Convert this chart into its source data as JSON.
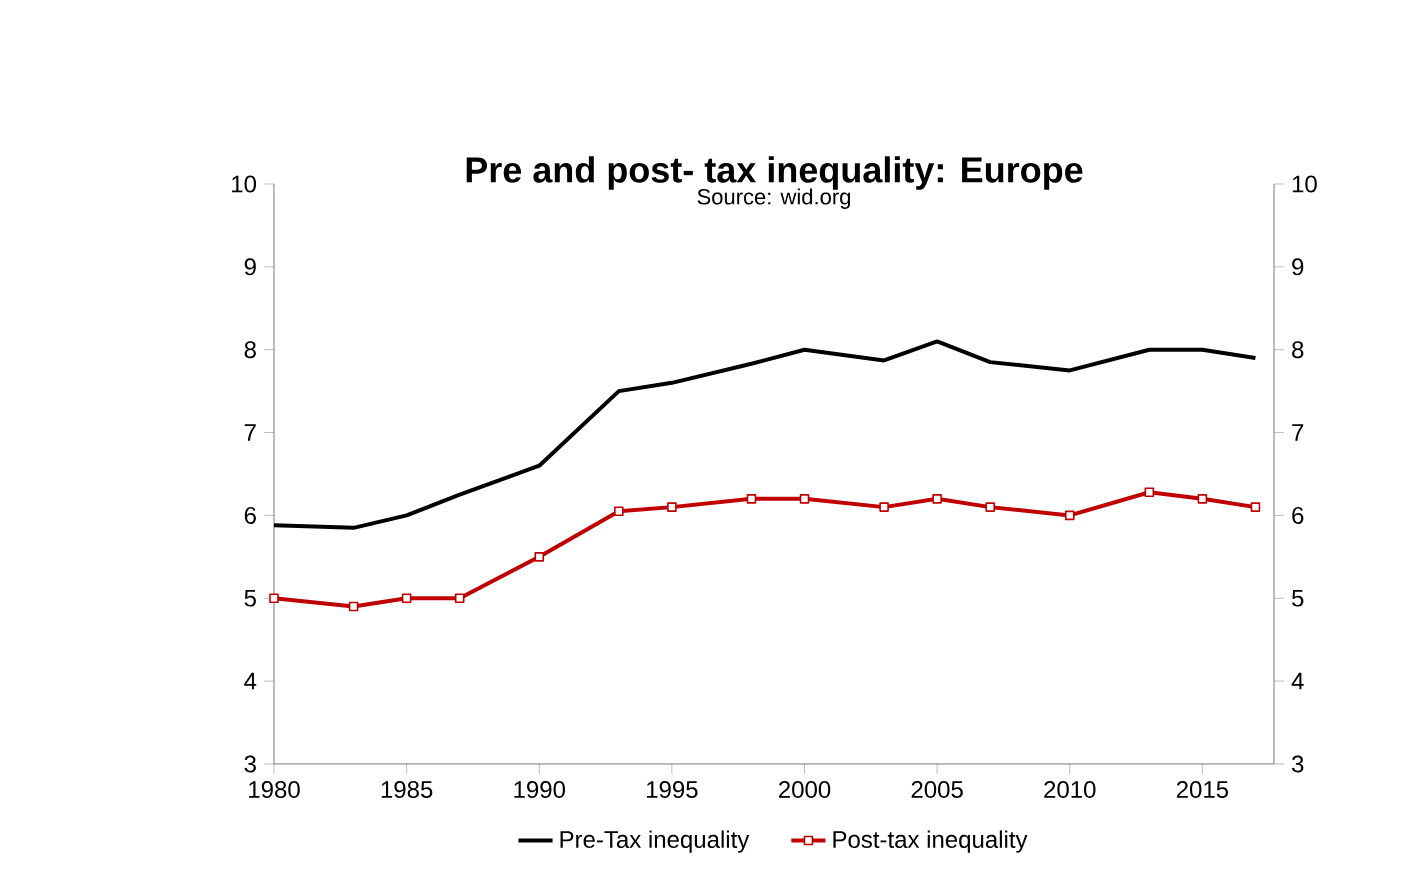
{
  "chart_data": {
    "type": "line",
    "title": "Pre and post- tax inequality: Europe",
    "subtitle": "Source: wid.org",
    "x": [
      1980,
      1983,
      1985,
      1987,
      1990,
      1993,
      1995,
      1998,
      2000,
      2003,
      2005,
      2007,
      2010,
      2013,
      2015,
      2017
    ],
    "series": [
      {
        "name": "Pre-Tax inequality",
        "color": "#000000",
        "marker": "none",
        "values": [
          5.88,
          5.85,
          6.0,
          6.25,
          6.6,
          7.5,
          7.6,
          7.83,
          8.0,
          7.87,
          8.1,
          7.85,
          7.75,
          8.0,
          8.0,
          7.9
        ]
      },
      {
        "name": "Post-tax inequality",
        "color": "#c00000",
        "marker": "square",
        "values": [
          5.0,
          4.9,
          5.0,
          5.0,
          5.5,
          6.05,
          6.1,
          6.2,
          6.2,
          6.1,
          6.2,
          6.1,
          6.0,
          6.28,
          6.2,
          6.1
        ]
      }
    ],
    "xlim": [
      1980,
      2017.7
    ],
    "xticks": [
      1980,
      1985,
      1990,
      1995,
      2000,
      2005,
      2010,
      2015
    ],
    "ylim": [
      3,
      10
    ],
    "yticks": [
      3,
      4,
      5,
      6,
      7,
      8,
      9,
      10
    ],
    "y2lim": [
      3,
      10
    ],
    "y2ticks": [
      3,
      4,
      5,
      6,
      7,
      8,
      9,
      10
    ],
    "grid": false,
    "legend": "bottom",
    "line_style": "solid"
  }
}
